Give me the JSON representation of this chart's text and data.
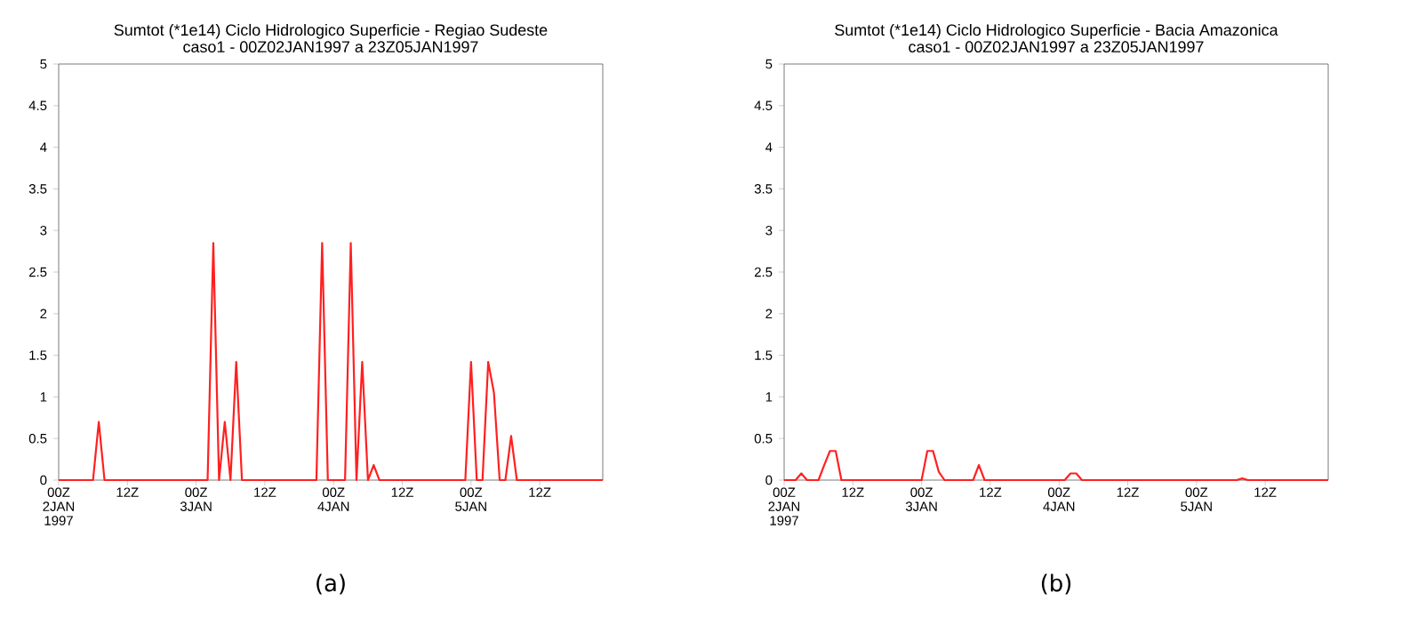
{
  "chart_data": [
    {
      "type": "line",
      "title": "Sumtot (*1e14) Ciclo Hidrologico Superficie - Regiao Sudeste",
      "subtitle": "caso1 - 00Z02JAN1997 a 23Z05JAN1997",
      "x": [
        "1997-01-02T00:00",
        "1997-01-02T01:00",
        "1997-01-02T02:00",
        "1997-01-02T03:00",
        "1997-01-02T04:00",
        "1997-01-02T05:00",
        "1997-01-02T06:00",
        "1997-01-02T07:00",
        "1997-01-02T08:00",
        "1997-01-02T09:00",
        "1997-01-02T10:00",
        "1997-01-02T11:00",
        "1997-01-02T12:00",
        "1997-01-02T13:00",
        "1997-01-02T14:00",
        "1997-01-02T15:00",
        "1997-01-02T16:00",
        "1997-01-02T17:00",
        "1997-01-02T18:00",
        "1997-01-02T19:00",
        "1997-01-02T20:00",
        "1997-01-02T21:00",
        "1997-01-02T22:00",
        "1997-01-02T23:00",
        "1997-01-03T00:00",
        "1997-01-03T01:00",
        "1997-01-03T02:00",
        "1997-01-03T03:00",
        "1997-01-03T04:00",
        "1997-01-03T05:00",
        "1997-01-03T06:00",
        "1997-01-03T07:00",
        "1997-01-03T08:00",
        "1997-01-03T09:00",
        "1997-01-03T10:00",
        "1997-01-03T11:00",
        "1997-01-03T12:00",
        "1997-01-03T13:00",
        "1997-01-03T14:00",
        "1997-01-03T15:00",
        "1997-01-03T16:00",
        "1997-01-03T17:00",
        "1997-01-03T18:00",
        "1997-01-03T19:00",
        "1997-01-03T20:00",
        "1997-01-03T21:00",
        "1997-01-03T22:00",
        "1997-01-03T23:00",
        "1997-01-04T00:00",
        "1997-01-04T01:00",
        "1997-01-04T02:00",
        "1997-01-04T03:00",
        "1997-01-04T04:00",
        "1997-01-04T05:00",
        "1997-01-04T06:00",
        "1997-01-04T07:00",
        "1997-01-04T08:00",
        "1997-01-04T09:00",
        "1997-01-04T10:00",
        "1997-01-04T11:00",
        "1997-01-04T12:00",
        "1997-01-04T13:00",
        "1997-01-04T14:00",
        "1997-01-04T15:00",
        "1997-01-04T16:00",
        "1997-01-04T17:00",
        "1997-01-04T18:00",
        "1997-01-04T19:00",
        "1997-01-04T20:00",
        "1997-01-04T21:00",
        "1997-01-04T22:00",
        "1997-01-04T23:00",
        "1997-01-05T00:00",
        "1997-01-05T01:00",
        "1997-01-05T02:00",
        "1997-01-05T03:00",
        "1997-01-05T04:00",
        "1997-01-05T05:00",
        "1997-01-05T06:00",
        "1997-01-05T07:00",
        "1997-01-05T08:00",
        "1997-01-05T09:00",
        "1997-01-05T10:00",
        "1997-01-05T11:00",
        "1997-01-05T12:00",
        "1997-01-05T13:00",
        "1997-01-05T14:00",
        "1997-01-05T15:00",
        "1997-01-05T16:00",
        "1997-01-05T17:00",
        "1997-01-05T18:00",
        "1997-01-05T19:00",
        "1997-01-05T20:00",
        "1997-01-05T21:00",
        "1997-01-05T22:00",
        "1997-01-05T23:00"
      ],
      "series": [
        {
          "color": "#ff2020",
          "values": [
            0,
            0,
            0,
            0,
            0,
            0,
            0,
            0.7,
            0,
            0,
            0,
            0,
            0,
            0,
            0,
            0,
            0,
            0,
            0,
            0,
            0,
            0,
            0,
            0,
            0,
            0,
            0,
            2.85,
            0,
            0.7,
            0,
            1.42,
            0,
            0,
            0,
            0,
            0,
            0,
            0,
            0,
            0,
            0,
            0,
            0,
            0,
            0,
            2.85,
            0,
            0,
            0,
            0,
            2.85,
            0,
            1.42,
            0,
            0.18,
            0,
            0,
            0,
            0,
            0,
            0,
            0,
            0,
            0,
            0,
            0,
            0,
            0,
            0,
            0,
            0,
            1.42,
            0,
            0,
            1.42,
            1.05,
            0,
            0,
            0.53,
            0,
            0,
            0,
            0,
            0,
            0,
            0,
            0,
            0,
            0,
            0,
            0,
            0,
            0,
            0,
            0
          ]
        }
      ],
      "xlim": [
        "1997-01-02T00:00",
        "1997-01-05T23:00"
      ],
      "xticks": [
        {
          "value": "1997-01-02T00:00",
          "label": "00Z 2JAN 1997"
        },
        {
          "value": "1997-01-02T12:00",
          "label": "12Z"
        },
        {
          "value": "1997-01-03T00:00",
          "label": "00Z 3JAN"
        },
        {
          "value": "1997-01-03T12:00",
          "label": "12Z"
        },
        {
          "value": "1997-01-04T00:00",
          "label": "00Z 4JAN"
        },
        {
          "value": "1997-01-04T12:00",
          "label": "12Z"
        },
        {
          "value": "1997-01-05T00:00",
          "label": "00Z 5JAN"
        },
        {
          "value": "1997-01-05T12:00",
          "label": "12Z"
        }
      ],
      "ylim": [
        0,
        5
      ],
      "yticks": [
        0,
        0.5,
        1,
        1.5,
        2,
        2.5,
        3,
        3.5,
        4,
        4.5,
        5
      ],
      "grid": false,
      "marker": "none",
      "line_style": "solid",
      "annotations": [
        "(a)"
      ]
    },
    {
      "type": "line",
      "title": "Sumtot (*1e14) Ciclo Hidrologico Superficie - Bacia Amazonica",
      "subtitle": "caso1 - 00Z02JAN1997 a 23Z05JAN1997",
      "x": [
        "1997-01-02T00:00",
        "1997-01-02T01:00",
        "1997-01-02T02:00",
        "1997-01-02T03:00",
        "1997-01-02T04:00",
        "1997-01-02T05:00",
        "1997-01-02T06:00",
        "1997-01-02T07:00",
        "1997-01-02T08:00",
        "1997-01-02T09:00",
        "1997-01-02T10:00",
        "1997-01-02T11:00",
        "1997-01-02T12:00",
        "1997-01-02T13:00",
        "1997-01-02T14:00",
        "1997-01-02T15:00",
        "1997-01-02T16:00",
        "1997-01-02T17:00",
        "1997-01-02T18:00",
        "1997-01-02T19:00",
        "1997-01-02T20:00",
        "1997-01-02T21:00",
        "1997-01-02T22:00",
        "1997-01-02T23:00",
        "1997-01-03T00:00",
        "1997-01-03T01:00",
        "1997-01-03T02:00",
        "1997-01-03T03:00",
        "1997-01-03T04:00",
        "1997-01-03T05:00",
        "1997-01-03T06:00",
        "1997-01-03T07:00",
        "1997-01-03T08:00",
        "1997-01-03T09:00",
        "1997-01-03T10:00",
        "1997-01-03T11:00",
        "1997-01-03T12:00",
        "1997-01-03T13:00",
        "1997-01-03T14:00",
        "1997-01-03T15:00",
        "1997-01-03T16:00",
        "1997-01-03T17:00",
        "1997-01-03T18:00",
        "1997-01-03T19:00",
        "1997-01-03T20:00",
        "1997-01-03T21:00",
        "1997-01-03T22:00",
        "1997-01-03T23:00",
        "1997-01-04T00:00",
        "1997-01-04T01:00",
        "1997-01-04T02:00",
        "1997-01-04T03:00",
        "1997-01-04T04:00",
        "1997-01-04T05:00",
        "1997-01-04T06:00",
        "1997-01-04T07:00",
        "1997-01-04T08:00",
        "1997-01-04T09:00",
        "1997-01-04T10:00",
        "1997-01-04T11:00",
        "1997-01-04T12:00",
        "1997-01-04T13:00",
        "1997-01-04T14:00",
        "1997-01-04T15:00",
        "1997-01-04T16:00",
        "1997-01-04T17:00",
        "1997-01-04T18:00",
        "1997-01-04T19:00",
        "1997-01-04T20:00",
        "1997-01-04T21:00",
        "1997-01-04T22:00",
        "1997-01-04T23:00",
        "1997-01-05T00:00",
        "1997-01-05T01:00",
        "1997-01-05T02:00",
        "1997-01-05T03:00",
        "1997-01-05T04:00",
        "1997-01-05T05:00",
        "1997-01-05T06:00",
        "1997-01-05T07:00",
        "1997-01-05T08:00",
        "1997-01-05T09:00",
        "1997-01-05T10:00",
        "1997-01-05T11:00",
        "1997-01-05T12:00",
        "1997-01-05T13:00",
        "1997-01-05T14:00",
        "1997-01-05T15:00",
        "1997-01-05T16:00",
        "1997-01-05T17:00",
        "1997-01-05T18:00",
        "1997-01-05T19:00",
        "1997-01-05T20:00",
        "1997-01-05T21:00",
        "1997-01-05T22:00",
        "1997-01-05T23:00"
      ],
      "series": [
        {
          "color": "#ff2020",
          "values": [
            0,
            0,
            0,
            0.08,
            0,
            0,
            0,
            0.18,
            0.35,
            0.35,
            0,
            0,
            0,
            0,
            0,
            0,
            0,
            0,
            0,
            0,
            0,
            0,
            0,
            0,
            0,
            0.35,
            0.35,
            0.1,
            0,
            0,
            0,
            0,
            0,
            0,
            0.18,
            0,
            0,
            0,
            0,
            0,
            0,
            0,
            0,
            0,
            0,
            0,
            0,
            0,
            0,
            0,
            0.08,
            0.08,
            0,
            0,
            0,
            0,
            0,
            0,
            0,
            0,
            0,
            0,
            0,
            0,
            0,
            0,
            0,
            0,
            0,
            0,
            0,
            0,
            0,
            0,
            0,
            0,
            0,
            0,
            0,
            0,
            0.02,
            0,
            0,
            0,
            0,
            0,
            0,
            0,
            0,
            0,
            0,
            0,
            0,
            0,
            0,
            0
          ]
        }
      ],
      "xlim": [
        "1997-01-02T00:00",
        "1997-01-05T23:00"
      ],
      "xticks": [
        {
          "value": "1997-01-02T00:00",
          "label": "00Z 2JAN 1997"
        },
        {
          "value": "1997-01-02T12:00",
          "label": "12Z"
        },
        {
          "value": "1997-01-03T00:00",
          "label": "00Z 3JAN"
        },
        {
          "value": "1997-01-03T12:00",
          "label": "12Z"
        },
        {
          "value": "1997-01-04T00:00",
          "label": "00Z 4JAN"
        },
        {
          "value": "1997-01-04T12:00",
          "label": "12Z"
        },
        {
          "value": "1997-01-05T00:00",
          "label": "00Z 5JAN"
        },
        {
          "value": "1997-01-05T12:00",
          "label": "12Z"
        }
      ],
      "ylim": [
        0,
        5
      ],
      "yticks": [
        0,
        0.5,
        1,
        1.5,
        2,
        2.5,
        3,
        3.5,
        4,
        4.5,
        5
      ],
      "grid": false,
      "marker": "none",
      "line_style": "solid",
      "annotations": [
        "(b)"
      ]
    }
  ]
}
